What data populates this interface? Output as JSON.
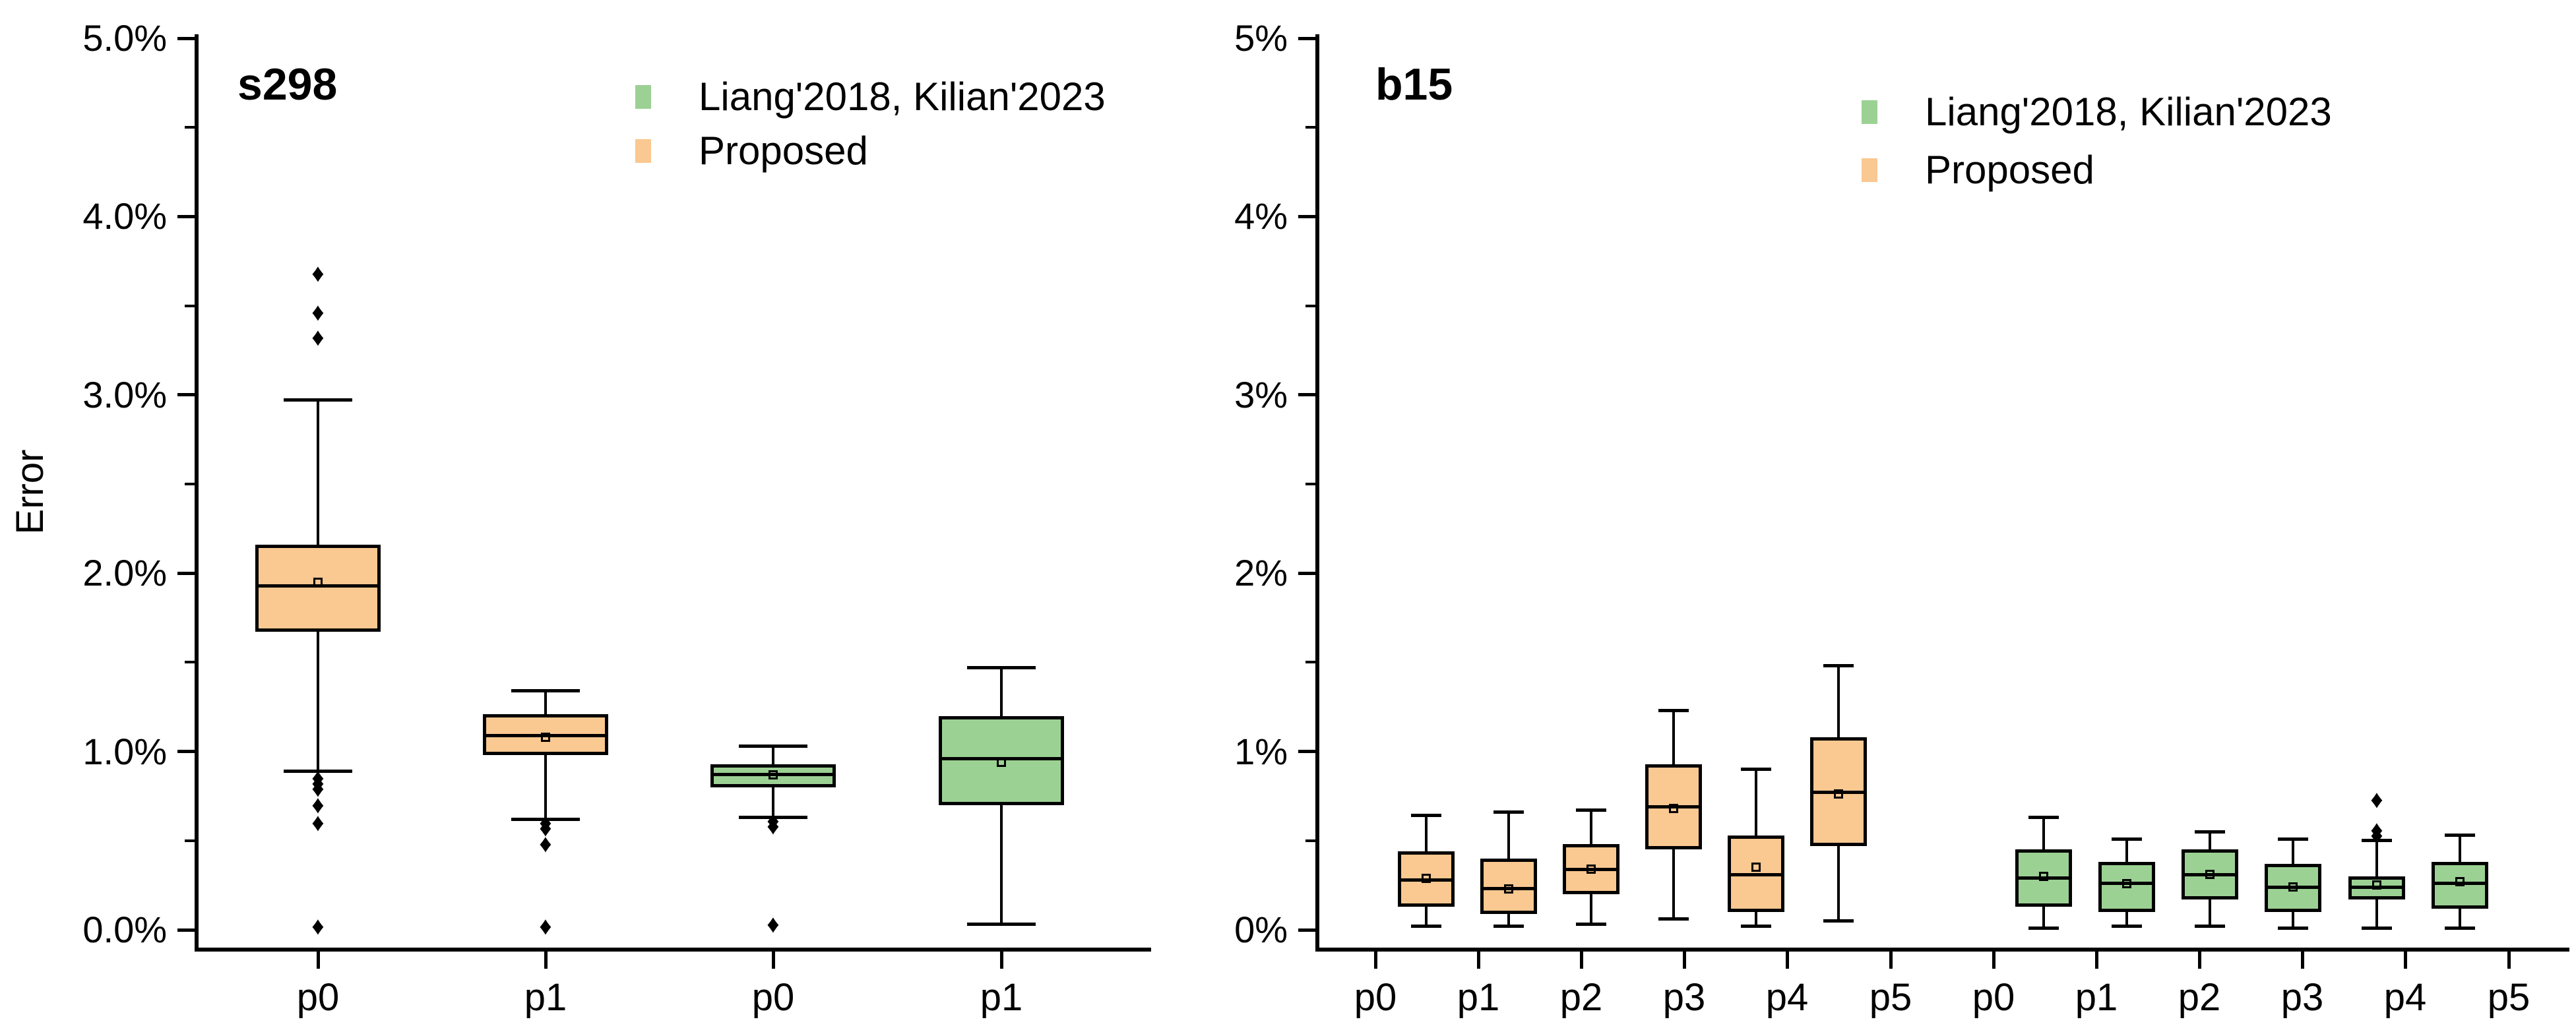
{
  "figure": {
    "background": "#ffffff",
    "text_color": "#000000"
  },
  "colors": {
    "liang": "#9CD194",
    "proposed": "#FAC891",
    "box_border": "#000000",
    "outlier": "#000000",
    "axis": "#000000"
  },
  "legend": {
    "items": [
      {
        "label": "Liang'2018, Kilian'2023",
        "color_key": "liang"
      },
      {
        "label": "Proposed",
        "color_key": "proposed"
      }
    ]
  },
  "chart_data": [
    {
      "type": "box",
      "title": "s298",
      "ylabel": "Error",
      "ylim": [
        0,
        5
      ],
      "y_unit": "%",
      "grid": false,
      "legend_position": "top-right-inside",
      "ytick_values": [
        0,
        1,
        2,
        3,
        4,
        5
      ],
      "ytick_labels": [
        "0.0%",
        "1.0%",
        "2.0%",
        "3.0%",
        "4.0%",
        "5.0%"
      ],
      "minor_ytick_values": [
        0.5,
        1.5,
        2.5,
        3.5,
        4.5
      ],
      "xtick_labels": [
        "p0",
        "p1",
        "p0",
        "p1"
      ],
      "boxes": [
        {
          "series": "Proposed",
          "category": "p0",
          "color_key": "proposed",
          "whisker_low": 0.89,
          "q1": 1.67,
          "median": 1.93,
          "q3": 2.16,
          "whisker_high": 2.97,
          "mean": 1.95,
          "outliers_high": [
            3.32,
            3.46,
            3.68
          ],
          "outliers_low": [
            0.85,
            0.82,
            0.79,
            0.7,
            0.6,
            0.02
          ]
        },
        {
          "series": "Proposed",
          "category": "p1",
          "color_key": "proposed",
          "whisker_low": 0.62,
          "q1": 0.98,
          "median": 1.09,
          "q3": 1.21,
          "whisker_high": 1.34,
          "mean": 1.08,
          "outliers_high": [],
          "outliers_low": [
            0.6,
            0.57,
            0.48,
            0.02
          ]
        },
        {
          "series": "Liang'2018, Kilian'2023",
          "category": "p0",
          "color_key": "liang",
          "whisker_low": 0.63,
          "q1": 0.8,
          "median": 0.87,
          "q3": 0.93,
          "whisker_high": 1.03,
          "mean": 0.87,
          "outliers_high": [],
          "outliers_low": [
            0.61,
            0.58,
            0.03
          ]
        },
        {
          "series": "Liang'2018, Kilian'2023",
          "category": "p1",
          "color_key": "liang",
          "whisker_low": 0.03,
          "q1": 0.7,
          "median": 0.96,
          "q3": 1.2,
          "whisker_high": 1.47,
          "mean": 0.94,
          "outliers_high": [],
          "outliers_low": []
        }
      ]
    },
    {
      "type": "box",
      "title": "b15",
      "ylabel": "",
      "ylim": [
        0,
        5
      ],
      "y_unit": "%",
      "grid": false,
      "legend_position": "top-right-inside",
      "ytick_values": [
        0,
        1,
        2,
        3,
        4,
        5
      ],
      "ytick_labels": [
        "0%",
        "1%",
        "2%",
        "3%",
        "4%",
        "5%"
      ],
      "minor_ytick_values": [
        0.5,
        1.5,
        2.5,
        3.5,
        4.5
      ],
      "xtick_labels": [
        "p0",
        "p1",
        "p2",
        "p3",
        "p4",
        "p5",
        "p0",
        "p1",
        "p2",
        "p3",
        "p4",
        "p5"
      ],
      "boxes": [
        {
          "series": "Proposed",
          "category": "p0",
          "color_key": "proposed",
          "whisker_low": 0.02,
          "q1": 0.13,
          "median": 0.28,
          "q3": 0.44,
          "whisker_high": 0.64,
          "mean": 0.29,
          "outliers_high": [],
          "outliers_low": []
        },
        {
          "series": "Proposed",
          "category": "p1",
          "color_key": "proposed",
          "whisker_low": 0.02,
          "q1": 0.09,
          "median": 0.23,
          "q3": 0.4,
          "whisker_high": 0.66,
          "mean": 0.23,
          "outliers_high": [],
          "outliers_low": []
        },
        {
          "series": "Proposed",
          "category": "p2",
          "color_key": "proposed",
          "whisker_low": 0.03,
          "q1": 0.2,
          "median": 0.34,
          "q3": 0.48,
          "whisker_high": 0.67,
          "mean": 0.34,
          "outliers_high": [],
          "outliers_low": []
        },
        {
          "series": "Proposed",
          "category": "p3",
          "color_key": "proposed",
          "whisker_low": 0.06,
          "q1": 0.45,
          "median": 0.69,
          "q3": 0.93,
          "whisker_high": 1.23,
          "mean": 0.68,
          "outliers_high": [],
          "outliers_low": []
        },
        {
          "series": "Proposed",
          "category": "p4",
          "color_key": "proposed",
          "whisker_low": 0.02,
          "q1": 0.1,
          "median": 0.31,
          "q3": 0.53,
          "whisker_high": 0.9,
          "mean": 0.35,
          "outliers_high": [],
          "outliers_low": []
        },
        {
          "series": "Proposed",
          "category": "p5",
          "color_key": "proposed",
          "whisker_low": 0.05,
          "q1": 0.47,
          "median": 0.77,
          "q3": 1.08,
          "whisker_high": 1.48,
          "mean": 0.76,
          "outliers_high": [],
          "outliers_low": []
        },
        {
          "series": "Liang'2018, Kilian'2023",
          "category": "p0",
          "color_key": "liang",
          "whisker_low": 0.01,
          "q1": 0.13,
          "median": 0.29,
          "q3": 0.45,
          "whisker_high": 0.63,
          "mean": 0.3,
          "outliers_high": [],
          "outliers_low": []
        },
        {
          "series": "Liang'2018, Kilian'2023",
          "category": "p1",
          "color_key": "liang",
          "whisker_low": 0.02,
          "q1": 0.1,
          "median": 0.26,
          "q3": 0.38,
          "whisker_high": 0.51,
          "mean": 0.26,
          "outliers_high": [],
          "outliers_low": []
        },
        {
          "series": "Liang'2018, Kilian'2023",
          "category": "p2",
          "color_key": "liang",
          "whisker_low": 0.02,
          "q1": 0.17,
          "median": 0.31,
          "q3": 0.45,
          "whisker_high": 0.55,
          "mean": 0.31,
          "outliers_high": [],
          "outliers_low": []
        },
        {
          "series": "Liang'2018, Kilian'2023",
          "category": "p3",
          "color_key": "liang",
          "whisker_low": 0.01,
          "q1": 0.1,
          "median": 0.24,
          "q3": 0.37,
          "whisker_high": 0.51,
          "mean": 0.24,
          "outliers_high": [],
          "outliers_low": []
        },
        {
          "series": "Liang'2018, Kilian'2023",
          "category": "p4",
          "color_key": "liang",
          "whisker_low": 0.01,
          "q1": 0.17,
          "median": 0.24,
          "q3": 0.3,
          "whisker_high": 0.5,
          "mean": 0.25,
          "outliers_high": [
            0.53,
            0.56,
            0.73
          ],
          "outliers_low": []
        },
        {
          "series": "Liang'2018, Kilian'2023",
          "category": "p5",
          "color_key": "liang",
          "whisker_low": 0.01,
          "q1": 0.12,
          "median": 0.26,
          "q3": 0.38,
          "whisker_high": 0.53,
          "mean": 0.27,
          "outliers_high": [],
          "outliers_low": []
        }
      ]
    }
  ]
}
